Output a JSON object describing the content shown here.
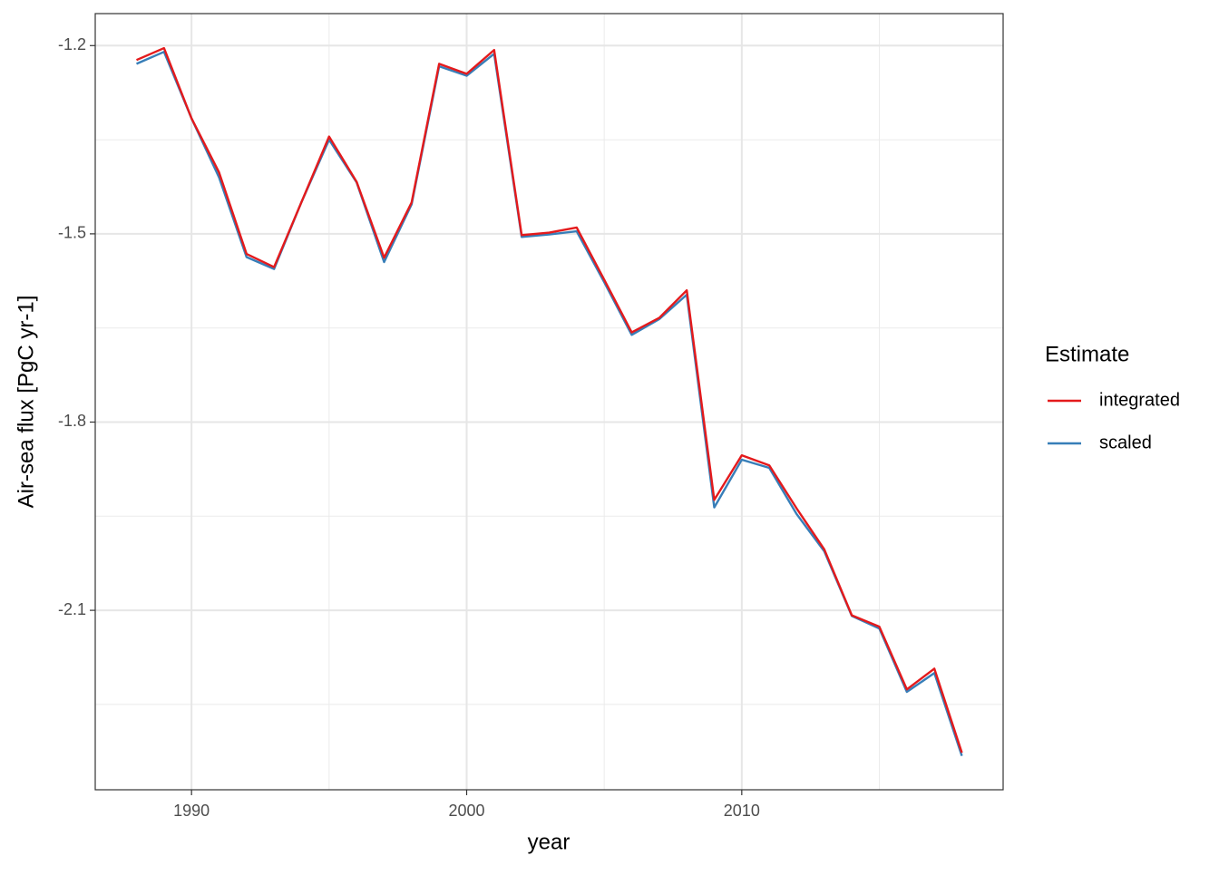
{
  "chart_data": {
    "type": "line",
    "x_label": "year",
    "y_label": "Air-sea flux [PgC yr-1]",
    "x": [
      1988,
      1989,
      1990,
      1991,
      1992,
      1993,
      1994,
      1995,
      1996,
      1997,
      1998,
      1999,
      2000,
      2001,
      2002,
      2003,
      2004,
      2005,
      2006,
      2007,
      2008,
      2009,
      2010,
      2011,
      2012,
      2013,
      2014,
      2015,
      2016,
      2017,
      2018
    ],
    "series": [
      {
        "name": "integrated",
        "color": "#e41a1c",
        "values": [
          -1.223,
          -1.204,
          -1.316,
          -1.402,
          -1.532,
          -1.553,
          -1.449,
          -1.345,
          -1.417,
          -1.538,
          -1.45,
          -1.229,
          -1.245,
          -1.207,
          -1.502,
          -1.498,
          -1.49,
          -1.573,
          -1.657,
          -1.634,
          -1.59,
          -1.924,
          -1.853,
          -1.869,
          -1.938,
          -2.003,
          -2.108,
          -2.126,
          -2.226,
          -2.193,
          -2.327
        ]
      },
      {
        "name": "scaled",
        "color": "#377eb8",
        "values": [
          -1.229,
          -1.21,
          -1.316,
          -1.41,
          -1.537,
          -1.556,
          -1.449,
          -1.35,
          -1.418,
          -1.545,
          -1.453,
          -1.233,
          -1.248,
          -1.213,
          -1.505,
          -1.501,
          -1.496,
          -1.577,
          -1.661,
          -1.636,
          -1.597,
          -1.936,
          -1.86,
          -1.873,
          -1.947,
          -2.006,
          -2.109,
          -2.129,
          -2.23,
          -2.2,
          -2.332
        ]
      }
    ],
    "legend_title": "Estimate",
    "legend_position": "right",
    "xlim": [
      1986.5,
      2019.5
    ],
    "xticks": [
      1990,
      2000,
      2010
    ],
    "ylim": [
      -2.386,
      -1.149
    ],
    "yticks": [
      -1.2,
      -1.5,
      -1.8,
      -2.1
    ],
    "grid": true
  }
}
